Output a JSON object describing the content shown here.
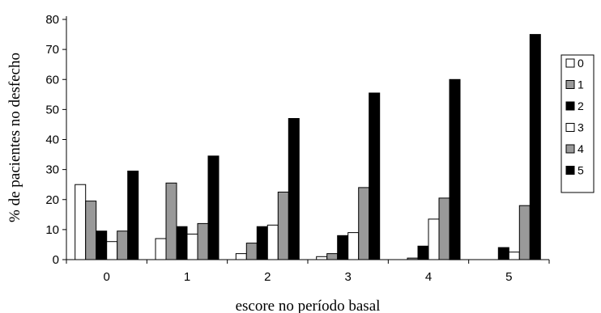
{
  "chart_data": {
    "type": "bar",
    "title": "",
    "xlabel": "escore no período basal",
    "ylabel": "% de pacientes no desfecho",
    "categories": [
      "0",
      "1",
      "2",
      "3",
      "4",
      "5"
    ],
    "ylim": [
      0,
      80
    ],
    "yticks": [
      0,
      10,
      20,
      30,
      40,
      50,
      60,
      70,
      80
    ],
    "grid": false,
    "legend_position": "right",
    "series": [
      {
        "name": "0",
        "color": "#ffffff",
        "values": [
          25,
          7,
          2,
          1,
          0,
          0
        ]
      },
      {
        "name": "1",
        "color": "#999999",
        "values": [
          19.5,
          25.5,
          5.5,
          2,
          0.5,
          0
        ]
      },
      {
        "name": "2",
        "color": "#000000",
        "values": [
          9.5,
          11,
          11,
          8,
          4.5,
          4
        ]
      },
      {
        "name": "3",
        "color": "#ffffff",
        "values": [
          6,
          8.5,
          11.5,
          9,
          13.5,
          2.5
        ]
      },
      {
        "name": "4",
        "color": "#999999",
        "values": [
          9.5,
          12,
          22.5,
          24,
          20.5,
          18
        ]
      },
      {
        "name": "5",
        "color": "#000000",
        "values": [
          29.5,
          34.5,
          47,
          55.5,
          60,
          75
        ]
      }
    ]
  }
}
